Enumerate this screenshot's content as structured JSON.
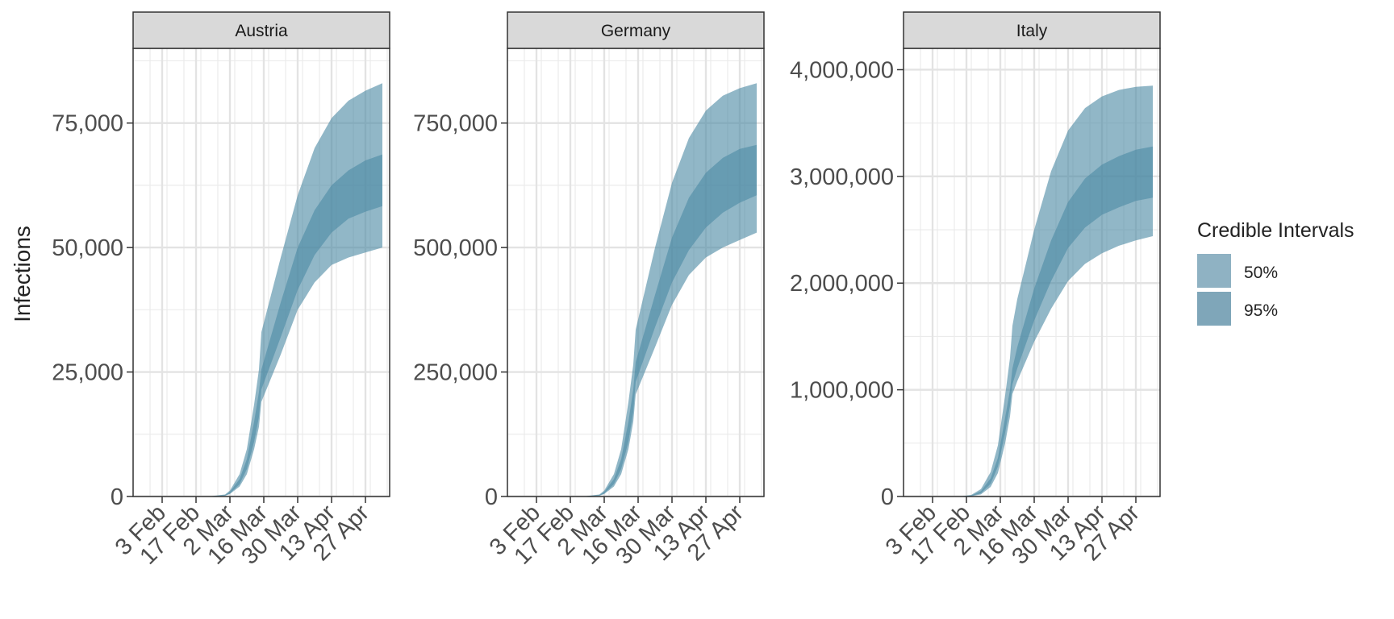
{
  "chart_data": [
    {
      "type": "area",
      "facet": "Austria",
      "ylabel": "Infections",
      "ylim": [
        0,
        90000
      ],
      "yticks": [
        0,
        25000,
        50000,
        75000
      ],
      "ytick_labels": [
        "0",
        "25,000",
        "50,000",
        "75,000"
      ],
      "xlim": [
        "2020-01-22",
        "2020-05-07"
      ],
      "xticks": [
        "2020-02-03",
        "2020-02-17",
        "2020-03-02",
        "2020-03-16",
        "2020-03-30",
        "2020-04-13",
        "2020-04-27"
      ],
      "xtick_labels": [
        "3 Feb",
        "17 Feb",
        "2 Mar",
        "16 Mar",
        "30 Mar",
        "13 Apr",
        "27 Apr"
      ],
      "x": [
        "2020-02-22",
        "2020-02-29",
        "2020-03-02",
        "2020-03-06",
        "2020-03-09",
        "2020-03-12",
        "2020-03-14",
        "2020-03-15",
        "2020-03-23",
        "2020-03-30",
        "2020-04-06",
        "2020-04-13",
        "2020-04-20",
        "2020-04-27",
        "2020-05-04"
      ],
      "series": [
        {
          "name": "50%",
          "lower": [
            0,
            200,
            600,
            2500,
            5500,
            11000,
            16000,
            21500,
            32000,
            41500,
            48500,
            53000,
            55800,
            57200,
            58300
          ],
          "upper": [
            0,
            300,
            900,
            3500,
            7500,
            15000,
            21000,
            25500,
            39000,
            50000,
            57500,
            62500,
            65500,
            67500,
            68700
          ]
        },
        {
          "name": "95%",
          "lower": [
            0,
            150,
            500,
            2000,
            4500,
            9500,
            14000,
            19000,
            28500,
            37500,
            43000,
            46500,
            48000,
            49000,
            50000
          ],
          "upper": [
            0,
            400,
            1200,
            4500,
            9500,
            18500,
            25500,
            33000,
            48000,
            60500,
            70000,
            76000,
            79500,
            81500,
            83000
          ]
        }
      ]
    },
    {
      "type": "area",
      "facet": "Germany",
      "ylabel": "",
      "ylim": [
        0,
        900000
      ],
      "yticks": [
        0,
        250000,
        500000,
        750000
      ],
      "ytick_labels": [
        "0",
        "250,000",
        "500,000",
        "750,000"
      ],
      "xlim": [
        "2020-01-22",
        "2020-05-07"
      ],
      "xticks": [
        "2020-02-03",
        "2020-02-17",
        "2020-03-02",
        "2020-03-16",
        "2020-03-30",
        "2020-04-13",
        "2020-04-27"
      ],
      "xtick_labels": [
        "3 Feb",
        "17 Feb",
        "2 Mar",
        "16 Mar",
        "30 Mar",
        "13 Apr",
        "27 Apr"
      ],
      "x": [
        "2020-02-22",
        "2020-02-29",
        "2020-03-02",
        "2020-03-06",
        "2020-03-09",
        "2020-03-12",
        "2020-03-14",
        "2020-03-15",
        "2020-03-23",
        "2020-03-30",
        "2020-04-06",
        "2020-04-13",
        "2020-04-20",
        "2020-04-27",
        "2020-05-04"
      ],
      "series": [
        {
          "name": "50%",
          "lower": [
            0,
            2000,
            6000,
            25000,
            55000,
            110000,
            170000,
            230000,
            340000,
            430000,
            495000,
            540000,
            570000,
            590000,
            605000
          ],
          "upper": [
            0,
            3000,
            9000,
            35000,
            75000,
            150000,
            215000,
            270000,
            405000,
            520000,
            600000,
            650000,
            680000,
            698000,
            706000
          ]
        },
        {
          "name": "95%",
          "lower": [
            0,
            1500,
            5000,
            20000,
            45000,
            95000,
            150000,
            205000,
            300000,
            385000,
            445000,
            480000,
            500000,
            515000,
            530000
          ],
          "upper": [
            0,
            4000,
            12000,
            45000,
            95000,
            190000,
            265000,
            335000,
            500000,
            630000,
            720000,
            775000,
            805000,
            820000,
            830000
          ]
        }
      ]
    },
    {
      "type": "area",
      "facet": "Italy",
      "ylabel": "",
      "ylim": [
        0,
        4200000
      ],
      "yticks": [
        0,
        1000000,
        2000000,
        3000000,
        4000000
      ],
      "ytick_labels": [
        "0",
        "1,000,000",
        "2,000,000",
        "3,000,000",
        "4,000,000"
      ],
      "xlim": [
        "2020-01-22",
        "2020-05-07"
      ],
      "xticks": [
        "2020-02-03",
        "2020-02-17",
        "2020-03-02",
        "2020-03-16",
        "2020-03-30",
        "2020-04-13",
        "2020-04-27"
      ],
      "xtick_labels": [
        "3 Feb",
        "17 Feb",
        "2 Mar",
        "16 Mar",
        "30 Mar",
        "13 Apr",
        "27 Apr"
      ],
      "x": [
        "2020-02-14",
        "2020-02-19",
        "2020-02-23",
        "2020-02-27",
        "2020-03-01",
        "2020-03-04",
        "2020-03-06",
        "2020-03-07",
        "2020-03-09",
        "2020-03-16",
        "2020-03-23",
        "2020-03-30",
        "2020-04-06",
        "2020-04-13",
        "2020-04-20",
        "2020-04-27",
        "2020-05-04"
      ],
      "series": [
        {
          "name": "50%",
          "lower": [
            0,
            5000,
            30000,
            120000,
            280000,
            600000,
            850000,
            1050000,
            1200000,
            1650000,
            2020000,
            2330000,
            2520000,
            2640000,
            2710000,
            2770000,
            2800000
          ],
          "upper": [
            0,
            10000,
            50000,
            170000,
            360000,
            740000,
            1000000,
            1200000,
            1400000,
            1950000,
            2400000,
            2760000,
            2980000,
            3110000,
            3190000,
            3250000,
            3280000
          ]
        },
        {
          "name": "95%",
          "lower": [
            0,
            3000,
            20000,
            90000,
            220000,
            500000,
            750000,
            960000,
            1080000,
            1450000,
            1760000,
            2020000,
            2180000,
            2280000,
            2350000,
            2400000,
            2440000
          ],
          "upper": [
            0,
            15000,
            70000,
            230000,
            480000,
            950000,
            1300000,
            1600000,
            1850000,
            2500000,
            3050000,
            3430000,
            3640000,
            3750000,
            3810000,
            3840000,
            3850000
          ]
        }
      ]
    }
  ],
  "legend": {
    "title": "Credible Intervals",
    "items": [
      {
        "label": "50%",
        "color": "#8fb2c3"
      },
      {
        "label": "95%",
        "color": "#7fa6b9"
      }
    ]
  },
  "colors": {
    "band": "#4e8aa5",
    "strip": "#d9d9d9",
    "grid": "#ebebeb"
  }
}
